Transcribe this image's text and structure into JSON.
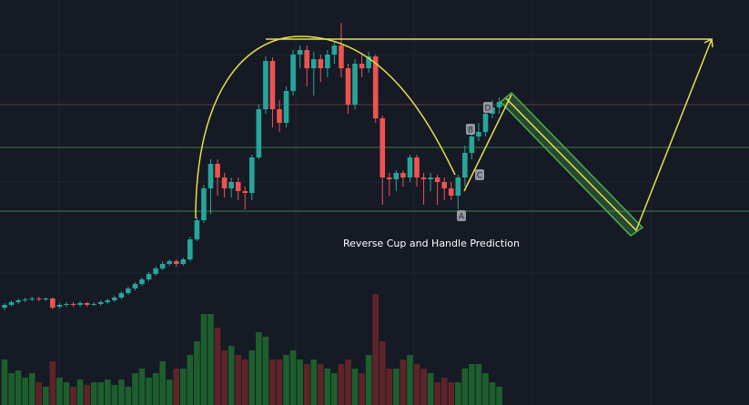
{
  "chart_data": {
    "type": "candlestick",
    "categories": [
      null,
      null,
      null,
      null,
      null,
      null,
      null,
      null,
      null,
      null,
      null,
      null,
      null,
      null,
      null,
      null,
      null,
      null,
      null,
      null,
      null,
      null,
      null,
      null,
      null,
      null,
      null,
      null,
      null,
      null,
      null,
      null,
      null,
      null,
      null,
      null,
      null,
      null,
      null,
      null,
      null,
      null,
      null,
      null,
      null,
      null,
      null,
      null,
      null,
      null,
      null,
      null,
      null,
      null,
      null,
      null,
      null,
      null,
      null,
      null,
      null,
      null,
      null,
      null,
      null,
      null,
      null,
      null,
      null,
      null,
      null,
      null,
      null
    ],
    "open": [
      107,
      110,
      113,
      115,
      116,
      117,
      116,
      117,
      108,
      110,
      111,
      110,
      112,
      110,
      111,
      113,
      115,
      118,
      123,
      128,
      133,
      138,
      144,
      150,
      155,
      158,
      155,
      160,
      182,
      203,
      238,
      265,
      250,
      238,
      245,
      235,
      233,
      272,
      325,
      378,
      325,
      310,
      345,
      385,
      390,
      370,
      380,
      370,
      385,
      395,
      370,
      330,
      375,
      370,
      383,
      315,
      250,
      248,
      255,
      250,
      272,
      250,
      248,
      250,
      245,
      238,
      230,
      250,
      277,
      295,
      300,
      320,
      327
    ],
    "high": [
      112,
      115,
      117,
      118,
      119,
      119,
      118,
      118,
      112,
      113,
      113,
      114,
      113,
      113,
      115,
      117,
      120,
      125,
      130,
      135,
      140,
      146,
      152,
      158,
      160,
      160,
      162,
      185,
      206,
      242,
      270,
      270,
      255,
      250,
      250,
      240,
      275,
      330,
      383,
      382,
      335,
      350,
      390,
      395,
      395,
      388,
      385,
      390,
      400,
      420,
      375,
      380,
      385,
      388,
      385,
      318,
      255,
      258,
      258,
      275,
      275,
      255,
      255,
      253,
      250,
      245,
      253,
      285,
      300,
      310,
      330,
      335,
      338
    ],
    "low": [
      104,
      108,
      111,
      113,
      114,
      114,
      114,
      105,
      106,
      108,
      108,
      108,
      108,
      109,
      109,
      111,
      113,
      116,
      121,
      126,
      131,
      136,
      142,
      148,
      153,
      152,
      153,
      158,
      180,
      200,
      210,
      230,
      228,
      228,
      225,
      215,
      225,
      270,
      320,
      305,
      300,
      305,
      340,
      370,
      350,
      340,
      355,
      360,
      375,
      360,
      320,
      325,
      360,
      365,
      310,
      220,
      230,
      235,
      240,
      245,
      240,
      220,
      235,
      220,
      225,
      225,
      215,
      240,
      270,
      290,
      295,
      315,
      320
    ],
    "close": [
      110,
      113,
      115,
      116,
      117,
      116,
      117,
      107,
      110,
      111,
      110,
      112,
      110,
      111,
      113,
      115,
      118,
      123,
      128,
      133,
      138,
      144,
      150,
      155,
      158,
      155,
      160,
      182,
      203,
      238,
      265,
      250,
      238,
      245,
      235,
      233,
      272,
      325,
      378,
      325,
      310,
      345,
      385,
      390,
      370,
      380,
      370,
      385,
      395,
      370,
      330,
      375,
      370,
      383,
      315,
      250,
      248,
      255,
      250,
      272,
      250,
      248,
      250,
      245,
      238,
      230,
      250,
      277,
      295,
      300,
      320,
      327,
      333
    ],
    "volume": [
      50,
      35,
      38,
      30,
      35,
      25,
      20,
      48,
      30,
      25,
      20,
      28,
      22,
      25,
      25,
      28,
      22,
      28,
      20,
      35,
      40,
      30,
      35,
      48,
      28,
      40,
      40,
      55,
      70,
      100,
      100,
      85,
      60,
      65,
      55,
      50,
      60,
      80,
      75,
      50,
      50,
      55,
      60,
      50,
      45,
      50,
      45,
      40,
      35,
      45,
      50,
      40,
      35,
      55,
      122,
      70,
      40,
      40,
      50,
      55,
      45,
      40,
      35,
      25,
      30,
      25,
      25,
      40,
      45,
      45,
      35,
      25,
      20
    ],
    "ylim": [
      0,
      445
    ],
    "volume_ylim": [
      0,
      445
    ],
    "up_color": "#26a69a",
    "down_color": "#ef5350",
    "volume_up_color": "#1d5f2c",
    "volume_down_color": "#5e2429",
    "annotations": [
      "A",
      "B",
      "C",
      "D",
      "Reverse Cup and Handle Prediction"
    ]
  }
}
